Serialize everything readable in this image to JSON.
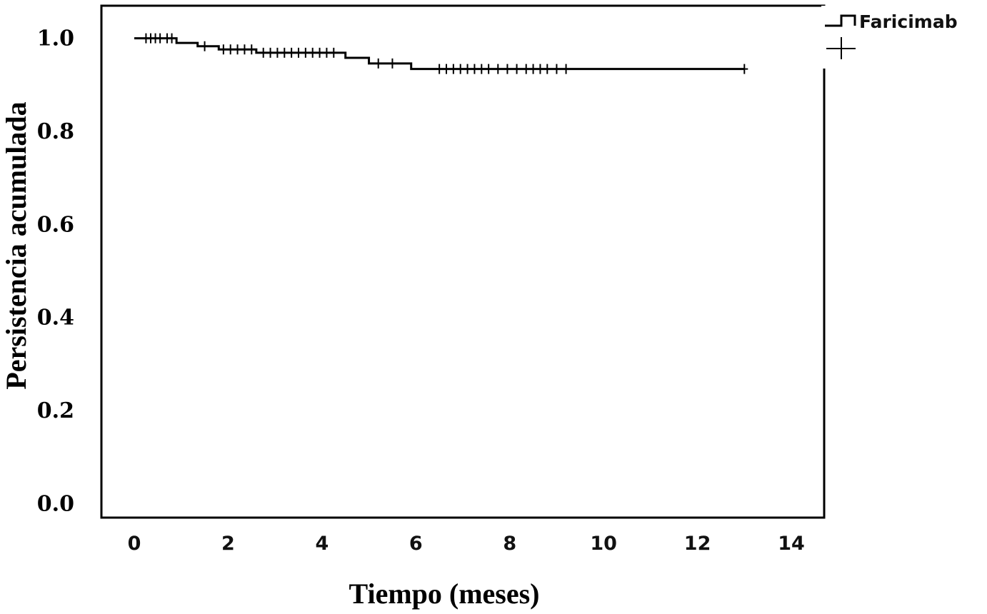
{
  "chart_data": {
    "type": "line",
    "title": "",
    "xlabel": "Tiempo (meses)",
    "ylabel": "Persistencia acumulada",
    "xlim": [
      -0.7,
      14.7
    ],
    "ylim": [
      -0.03,
      1.07
    ],
    "x_ticks": [
      "0",
      "2",
      "4",
      "6",
      "8",
      "10",
      "12",
      "14"
    ],
    "x_tick_values": [
      0,
      2,
      4,
      6,
      8,
      10,
      12,
      14
    ],
    "y_ticks": [
      "0.0",
      "0.2",
      "0.4",
      "0.6",
      "0.8",
      "1.0"
    ],
    "y_tick_values": [
      0.0,
      0.2,
      0.4,
      0.6,
      0.8,
      1.0
    ],
    "grid": false,
    "legend": {
      "placement": "outside-top-right",
      "entries": [
        "Faricimab",
        ""
      ]
    },
    "series": [
      {
        "name": "Faricimab",
        "color": "#000000",
        "steps": [
          [
            0,
            1.0
          ],
          [
            0.9,
            0.99
          ],
          [
            1.35,
            0.983
          ],
          [
            1.8,
            0.976
          ],
          [
            2.6,
            0.969
          ],
          [
            4.5,
            0.958
          ],
          [
            5.0,
            0.946
          ],
          [
            5.9,
            0.934
          ],
          [
            13.0,
            0.934
          ]
        ],
        "censored": [
          [
            0.25,
            1.0
          ],
          [
            0.35,
            1.0
          ],
          [
            0.45,
            1.0
          ],
          [
            0.55,
            1.0
          ],
          [
            0.7,
            1.0
          ],
          [
            0.8,
            1.0
          ],
          [
            1.5,
            0.983
          ],
          [
            1.9,
            0.976
          ],
          [
            2.05,
            0.976
          ],
          [
            2.2,
            0.976
          ],
          [
            2.35,
            0.976
          ],
          [
            2.5,
            0.976
          ],
          [
            2.75,
            0.969
          ],
          [
            2.9,
            0.969
          ],
          [
            3.05,
            0.969
          ],
          [
            3.2,
            0.969
          ],
          [
            3.35,
            0.969
          ],
          [
            3.5,
            0.969
          ],
          [
            3.65,
            0.969
          ],
          [
            3.8,
            0.969
          ],
          [
            3.95,
            0.969
          ],
          [
            4.1,
            0.969
          ],
          [
            4.25,
            0.969
          ],
          [
            5.2,
            0.946
          ],
          [
            5.5,
            0.946
          ],
          [
            6.5,
            0.934
          ],
          [
            6.65,
            0.934
          ],
          [
            6.8,
            0.934
          ],
          [
            6.95,
            0.934
          ],
          [
            7.1,
            0.934
          ],
          [
            7.25,
            0.934
          ],
          [
            7.4,
            0.934
          ],
          [
            7.55,
            0.934
          ],
          [
            7.75,
            0.934
          ],
          [
            7.95,
            0.934
          ],
          [
            8.15,
            0.934
          ],
          [
            8.35,
            0.934
          ],
          [
            8.5,
            0.934
          ],
          [
            8.65,
            0.934
          ],
          [
            8.8,
            0.934
          ],
          [
            9.0,
            0.934
          ],
          [
            9.2,
            0.934
          ],
          [
            13.0,
            0.934
          ]
        ]
      }
    ]
  }
}
